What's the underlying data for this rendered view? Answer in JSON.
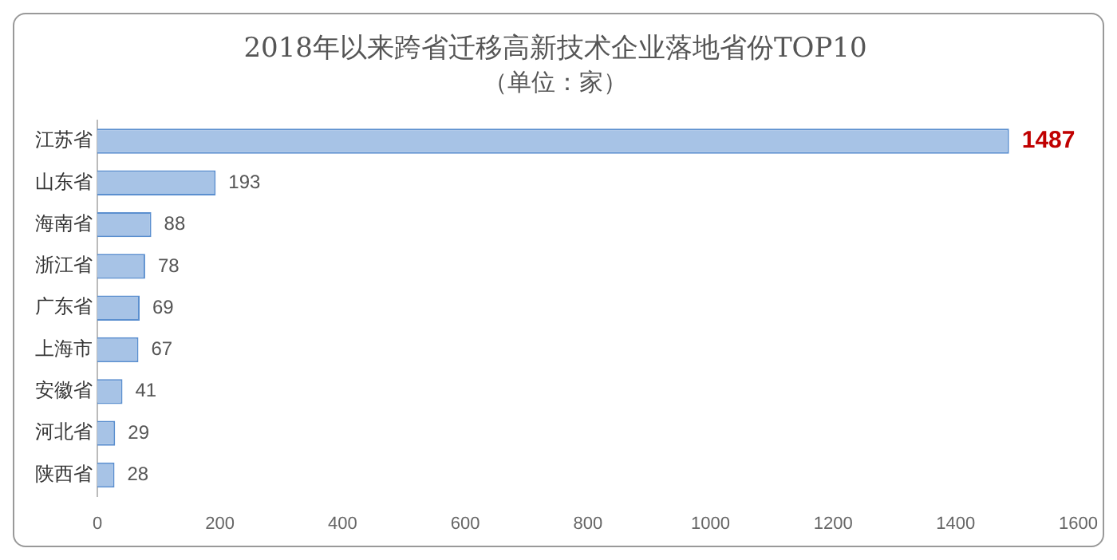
{
  "chart_data": {
    "type": "bar",
    "orientation": "horizontal",
    "title": "2018年以来跨省迁移高新技术企业落地省份TOP10",
    "subtitle": "（单位：家）",
    "categories": [
      "江苏省",
      "山东省",
      "海南省",
      "浙江省",
      "广东省",
      "上海市",
      "安徽省",
      "河北省",
      "陕西省"
    ],
    "values": [
      1487,
      193,
      88,
      78,
      69,
      67,
      41,
      29,
      28
    ],
    "color": "#a7c3e6",
    "xlim": [
      0,
      1600
    ],
    "xticks": [
      0,
      200,
      400,
      600,
      800,
      1000,
      1200,
      1400,
      1600
    ],
    "data_labels": true,
    "grid": false,
    "legend": false
  }
}
